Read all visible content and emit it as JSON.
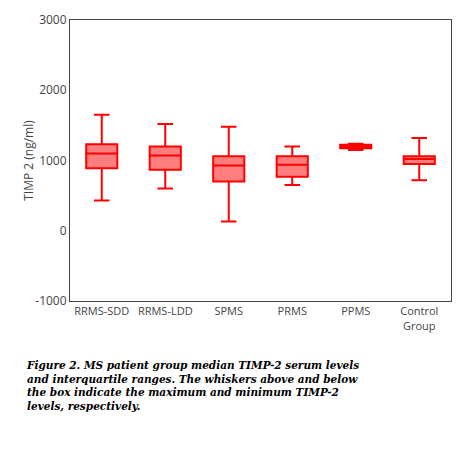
{
  "chart_data": {
    "type": "box",
    "categories": [
      "RRMS-SDD",
      "RRMS-LDD",
      "SPMS",
      "PRMS",
      "PPMS",
      "Control\nGroup"
    ],
    "values": [
      {
        "low": 430,
        "q1": 890,
        "median": 1100,
        "q3": 1230,
        "high": 1650
      },
      {
        "low": 600,
        "q1": 870,
        "median": 1070,
        "q3": 1200,
        "high": 1520
      },
      {
        "low": 130,
        "q1": 700,
        "median": 930,
        "q3": 1060,
        "high": 1480
      },
      {
        "low": 650,
        "q1": 770,
        "median": 940,
        "q3": 1060,
        "high": 1200
      },
      {
        "low": 1150,
        "q1": 1175,
        "median": 1200,
        "q3": 1225,
        "high": 1240
      },
      {
        "low": 720,
        "q1": 950,
        "median": 1020,
        "q3": 1060,
        "high": 1320
      }
    ],
    "ylabel": "TIMP 2 (ng/ml)",
    "ylim": [
      -1000,
      3000
    ],
    "yticks": [
      -1000,
      0,
      1000,
      2000,
      3000
    ],
    "color": "#FF0000",
    "grid": false,
    "caption": "Figure 2. MS patient group median TIMP-2 serum levels\nand interquartile ranges. The whiskers above and below\nthe box indicate the maximum and minimum TIMP-2\nlevels, respectively."
  }
}
